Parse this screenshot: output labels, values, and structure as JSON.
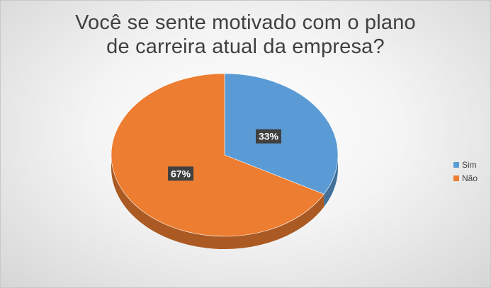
{
  "chart_data": {
    "type": "pie",
    "title_lines": [
      "Você se sente motivado com o plano",
      "de carreira atual da empresa?"
    ],
    "categories": [
      "Sim",
      "Não"
    ],
    "values": [
      33,
      67
    ],
    "labels": [
      "33%",
      "67%"
    ],
    "colors": [
      "#5b9bd5",
      "#ed7d31"
    ],
    "style": "3d",
    "legend_placement": "right"
  }
}
